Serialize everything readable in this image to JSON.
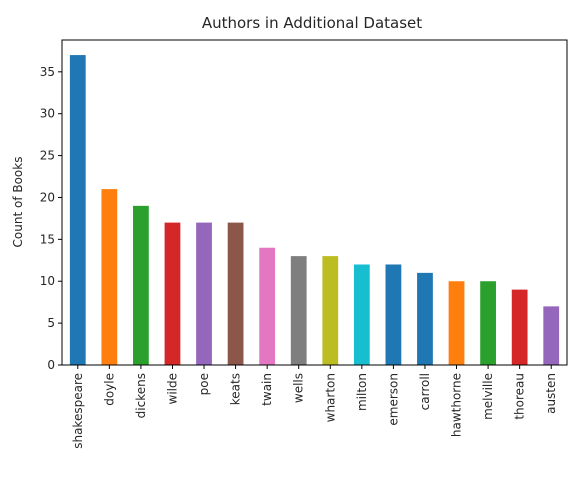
{
  "chart_data": {
    "type": "bar",
    "title": "Authors in Additional Dataset",
    "xlabel": "",
    "ylabel": "Count of Books",
    "ylim": [
      0,
      38.8
    ],
    "yticks": [
      0,
      5,
      10,
      15,
      20,
      25,
      30,
      35
    ],
    "grid": false,
    "categories": [
      "shakespeare",
      "doyle",
      "dickens",
      "wilde",
      "poe",
      "keats",
      "twain",
      "wells",
      "wharton",
      "milton",
      "emerson",
      "carroll",
      "hawthorne",
      "melville",
      "thoreau",
      "austen"
    ],
    "values": [
      37,
      21,
      19,
      17,
      17,
      17,
      14,
      13,
      13,
      12,
      12,
      11,
      10,
      10,
      9,
      7
    ],
    "colors": [
      "#1f77b4",
      "#ff7f0e",
      "#2ca02c",
      "#d62728",
      "#9467bd",
      "#8c564b",
      "#e377c2",
      "#7f7f7f",
      "#bcbd22",
      "#17becf",
      "#1f77b4",
      "#1f77b4",
      "#ff7f0e",
      "#2ca02c",
      "#d62728",
      "#9467bd"
    ]
  }
}
